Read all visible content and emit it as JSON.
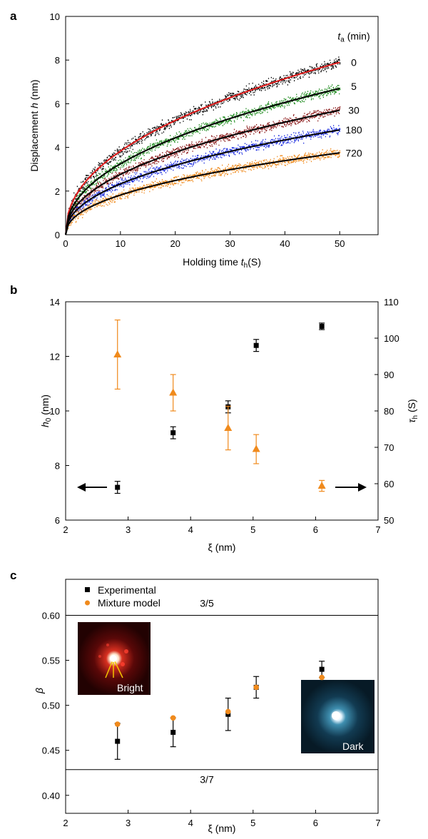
{
  "chart_data": [
    {
      "panel": "a",
      "type": "scatter",
      "xlabel": "Holding time t_h(S)",
      "xlabel_parts": {
        "pre": "Holding time ",
        "var": "t",
        "sub": "h",
        "post": "(S)"
      },
      "ylabel": "Displacement h (nm)",
      "ylabel_parts": {
        "pre": "Displacement ",
        "var": "h",
        "post": " (nm)"
      },
      "xlim": [
        0,
        57
      ],
      "ylim": [
        0,
        10
      ],
      "xticks": [
        0,
        10,
        20,
        30,
        40,
        50
      ],
      "yticks": [
        0,
        2,
        4,
        6,
        8,
        10
      ],
      "legend_title": "t_a (min)",
      "legend_title_parts": {
        "var": "t",
        "sub": "a",
        "post": " (min)"
      },
      "series": [
        {
          "name": "0",
          "color": "#000000",
          "fit_color": "#e01a1a",
          "fit_final": 7.9,
          "noise": 0.22
        },
        {
          "name": "5",
          "color": "#1e8c1e",
          "fit_color": "#000000",
          "fit_final": 6.7,
          "noise": 0.2
        },
        {
          "name": "30",
          "color": "#8b1a1a",
          "fit_color": "#000000",
          "fit_final": 5.7,
          "noise": 0.2
        },
        {
          "name": "180",
          "color": "#1f2fe0",
          "fit_color": "#000000",
          "fit_final": 4.8,
          "noise": 0.2
        },
        {
          "name": "720",
          "color": "#f08a1c",
          "fit_color": "#000000",
          "fit_final": 3.75,
          "noise": 0.2
        }
      ]
    },
    {
      "panel": "b",
      "type": "scatter",
      "xlabel": "ξ (nm)",
      "ylabel_left": "h_0 (nm)",
      "ylabel_left_parts": {
        "var": "h",
        "sub": "0",
        "post": " (nm)"
      },
      "ylabel_right": "τ_h (S)",
      "ylabel_right_parts": {
        "var": "τ",
        "sub": "h",
        "post": " (S)"
      },
      "xlim": [
        2,
        7
      ],
      "ylim_left": [
        6,
        14
      ],
      "ylim_right": [
        50,
        110
      ],
      "xticks": [
        2,
        3,
        4,
        5,
        6,
        7
      ],
      "yticks_left": [
        6,
        8,
        10,
        12,
        14
      ],
      "yticks_right": [
        50,
        60,
        70,
        80,
        90,
        100,
        110
      ],
      "series": [
        {
          "name": "h0",
          "axis": "left",
          "marker": "square",
          "color": "#000000",
          "x": [
            2.83,
            3.72,
            4.6,
            5.05,
            6.1
          ],
          "y": [
            7.2,
            9.2,
            10.15,
            12.4,
            13.1
          ],
          "err": [
            0.22,
            0.22,
            0.22,
            0.22,
            0.12
          ]
        },
        {
          "name": "tau_h",
          "axis": "right",
          "marker": "triangle",
          "color": "#f08a1c",
          "x": [
            2.83,
            3.72,
            4.6,
            5.05,
            6.1
          ],
          "y": [
            95.5,
            85,
            75.3,
            69.5,
            59.4
          ],
          "err": [
            9.5,
            5,
            6,
            4,
            1.5
          ]
        }
      ]
    },
    {
      "panel": "c",
      "type": "scatter",
      "xlabel": "ξ (nm)",
      "ylabel": "β",
      "xlim": [
        2,
        7
      ],
      "ylim": [
        0.38,
        0.64
      ],
      "xticks": [
        2,
        3,
        4,
        5,
        6,
        7
      ],
      "yticks": [
        0.4,
        0.45,
        0.5,
        0.55,
        0.6
      ],
      "ytick_labels": [
        "0.40",
        "0.45",
        "0.50",
        "0.55",
        "0.60"
      ],
      "hlines": [
        {
          "y": 0.6,
          "label": "3/5"
        },
        {
          "y": 0.4286,
          "label": "3/7"
        }
      ],
      "series": [
        {
          "name": "Experimental",
          "marker": "square",
          "color": "#000000",
          "x": [
            2.83,
            3.72,
            4.6,
            5.05,
            6.1
          ],
          "y": [
            0.46,
            0.47,
            0.49,
            0.52,
            0.54
          ],
          "err": [
            0.02,
            0.016,
            0.018,
            0.012,
            0.009
          ]
        },
        {
          "name": "Mixture model",
          "marker": "circle",
          "color": "#f08a1c",
          "x": [
            2.83,
            3.72,
            4.6,
            5.05,
            6.1
          ],
          "y": [
            0.479,
            0.486,
            0.493,
            0.52,
            0.531
          ]
        }
      ],
      "insets": [
        {
          "label": "Bright",
          "tone": "red"
        },
        {
          "label": "Dark",
          "tone": "blue"
        }
      ]
    }
  ],
  "panel_labels": [
    "a",
    "b",
    "c"
  ]
}
